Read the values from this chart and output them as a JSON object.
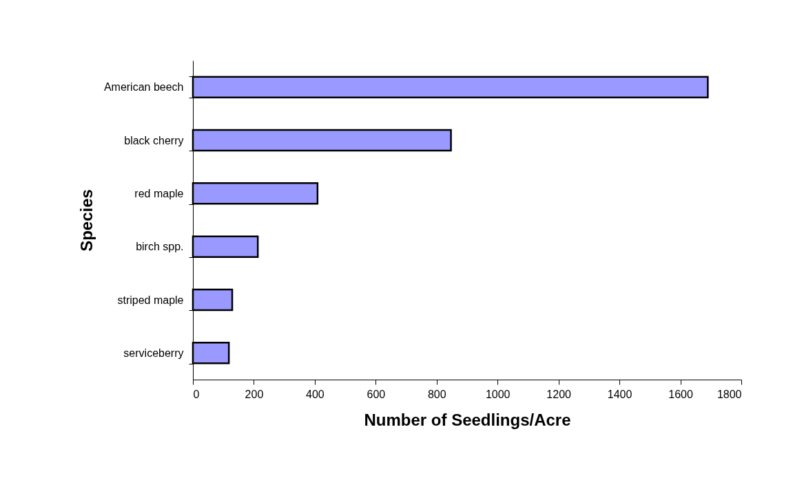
{
  "chart_data": {
    "type": "bar",
    "orientation": "horizontal",
    "categories": [
      "American beech",
      "black cherry",
      "red maple",
      "birch spp.",
      "striped maple",
      "serviceberry"
    ],
    "values": [
      1690,
      847,
      409,
      213,
      129,
      118
    ],
    "color": "#9999ff",
    "xlabel": "Number of Seedlings/Acre",
    "ylabel": "Species",
    "xlim": [
      0,
      1800
    ],
    "xticks": [
      0,
      200,
      400,
      600,
      800,
      1000,
      1200,
      1400,
      1600,
      1800
    ],
    "grid": false
  }
}
